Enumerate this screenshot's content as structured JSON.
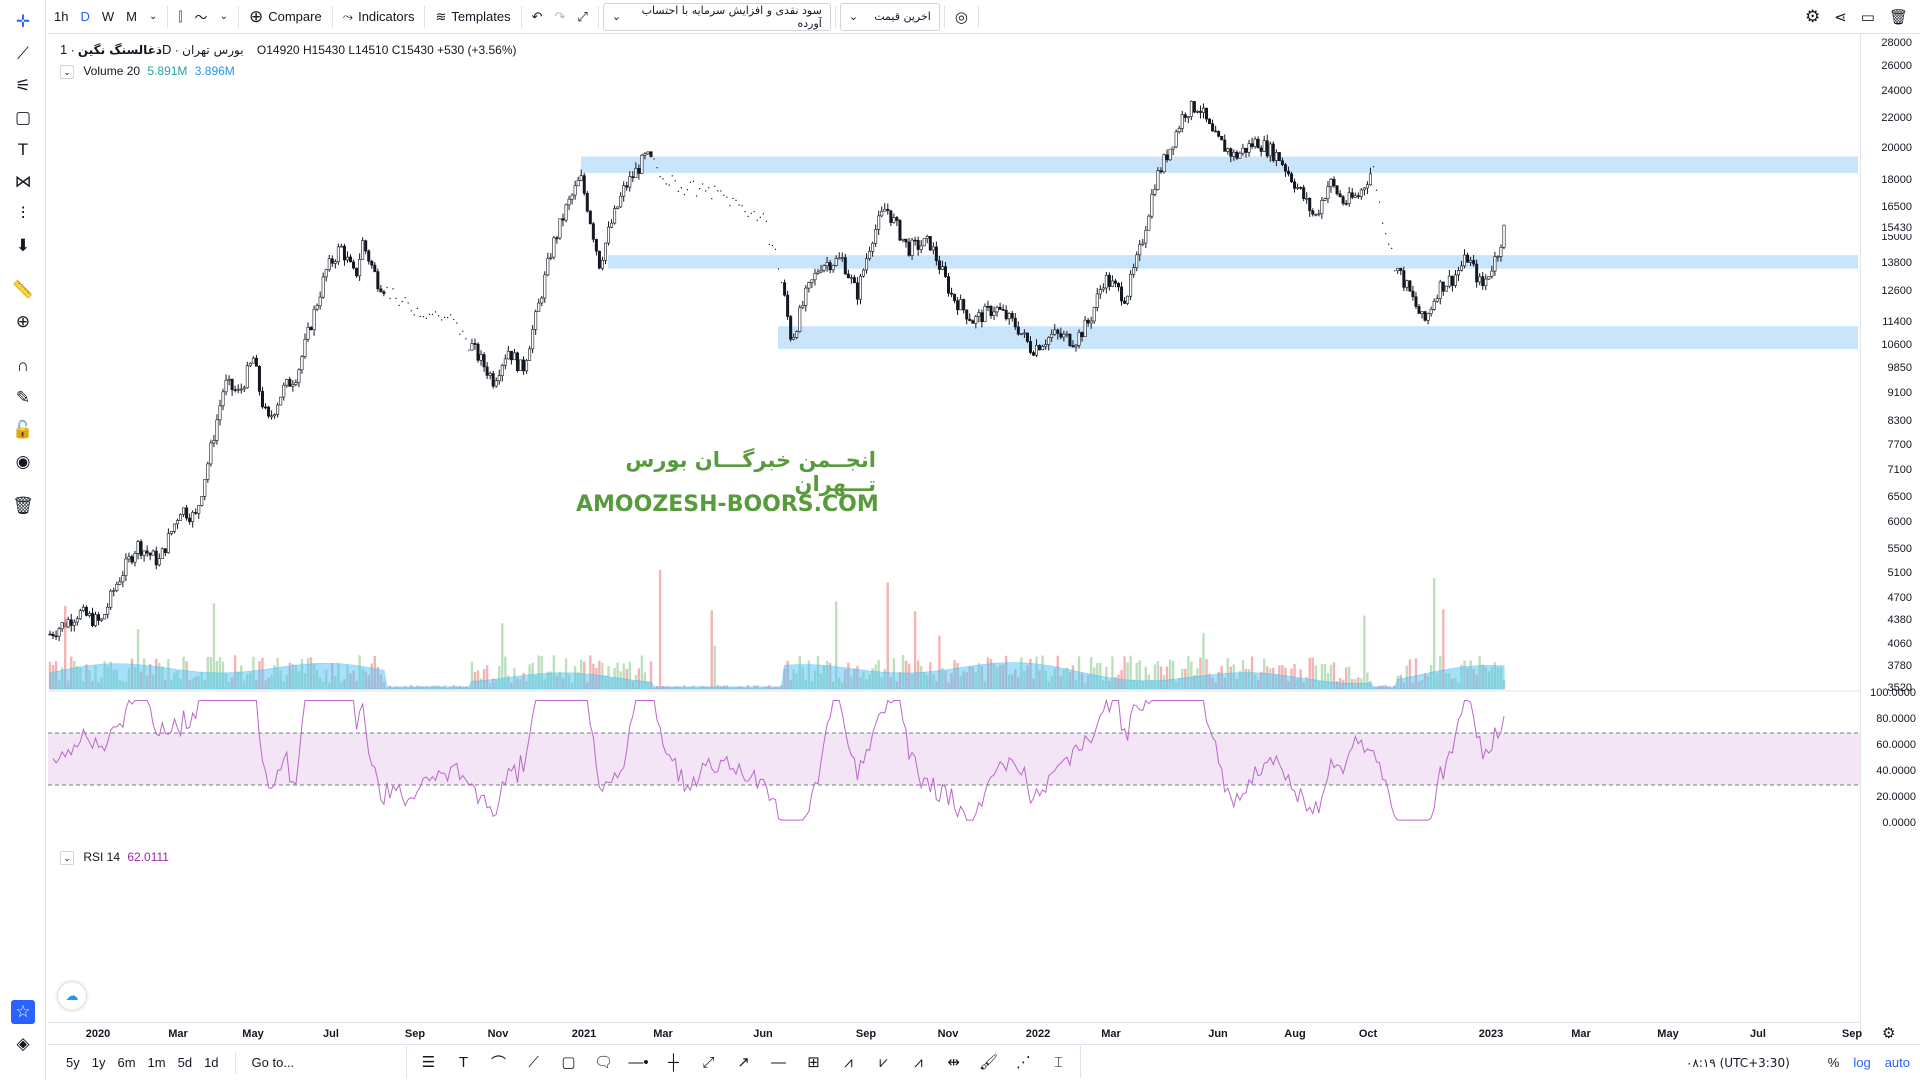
{
  "toolbar": {
    "intervals": [
      "1h",
      "D",
      "W",
      "M"
    ],
    "active_interval": "D",
    "compare_label": "Compare",
    "indicators_label": "Indicators",
    "templates_label": "Templates",
    "dropdown1_value": "سود نقدی و افزایش سرمایه با احتساب آورده",
    "dropdown2_value": "اخرین قیمت"
  },
  "legend": {
    "symbol": "ذغالسنگ نگین",
    "interval": "1D",
    "exchange": "بورس تهران",
    "open": "O14920",
    "high": "H15430",
    "low": "L14510",
    "close": "C15430",
    "change": "+530 (+3.56%)",
    "volume_title": "Volume 20",
    "volume_v1": "5.891M",
    "volume_v2": "3.896M",
    "rsi_title": "RSI 14",
    "rsi_value": "62.0111"
  },
  "watermark": {
    "line1": "انجــمن خبرگـــان بورس تـــهران",
    "line2": "AMOOZESH-BOORS.COM"
  },
  "bottom": {
    "ranges": [
      "5y",
      "1y",
      "6m",
      "1m",
      "5d",
      "1d"
    ],
    "goto_label": "Go to...",
    "timezone": "۰۸:۱۹ (UTC+3:30)",
    "percent": "%",
    "log": "log",
    "auto": "auto"
  },
  "colors": {
    "zone": "#bbdefb",
    "rsi_band": "#f3e5f5",
    "rsi_line": "#ba68c8",
    "vol_up": "#a5d6a7",
    "vol_down": "#ef9a9a",
    "vol_ma": "#4fc3f7",
    "accent": "#2962ff"
  },
  "chart_data": {
    "type": "candlestick",
    "title": "ذغالسنگ نگین",
    "price_axis_scale": "log",
    "price_axis_ticks": [
      28000,
      26000,
      24000,
      22000,
      20000,
      18000,
      16500,
      15000,
      13800,
      12600,
      11400,
      10600,
      9850,
      9100,
      8300,
      7700,
      7100,
      6500,
      6000,
      5500,
      5100,
      4700,
      4380,
      4060,
      3780,
      3520
    ],
    "last_price": 15430,
    "rsi_axis_ticks": [
      "100.0000",
      "80.0000",
      "60.0000",
      "40.0000",
      "20.0000",
      "0.0000"
    ],
    "rsi_band": [
      30,
      70
    ],
    "time_labels": [
      "2020",
      "Mar",
      "May",
      "Jul",
      "Sep",
      "Nov",
      "2021",
      "Mar",
      "Jun",
      "Sep",
      "Nov",
      "2022",
      "Mar",
      "Jun",
      "Aug",
      "Oct",
      "2023",
      "Mar",
      "May",
      "Jul",
      "Sep"
    ],
    "zones": [
      {
        "from": 18500,
        "to": 19500
      },
      {
        "from": 13600,
        "to": 14200
      },
      {
        "from": 10500,
        "to": 11300
      }
    ],
    "price_path": [
      {
        "x": 0,
        "y": 4200
      },
      {
        "x": 0.02,
        "y": 4500
      },
      {
        "x": 0.035,
        "y": 4350
      },
      {
        "x": 0.045,
        "y": 4900
      },
      {
        "x": 0.06,
        "y": 5600
      },
      {
        "x": 0.075,
        "y": 5300
      },
      {
        "x": 0.09,
        "y": 6300
      },
      {
        "x": 0.1,
        "y": 6100
      },
      {
        "x": 0.11,
        "y": 7500
      },
      {
        "x": 0.12,
        "y": 9400
      },
      {
        "x": 0.13,
        "y": 9100
      },
      {
        "x": 0.14,
        "y": 10200
      },
      {
        "x": 0.145,
        "y": 9000
      },
      {
        "x": 0.15,
        "y": 8300
      },
      {
        "x": 0.16,
        "y": 9200
      },
      {
        "x": 0.17,
        "y": 9700
      },
      {
        "x": 0.18,
        "y": 11500
      },
      {
        "x": 0.19,
        "y": 13500
      },
      {
        "x": 0.2,
        "y": 14600
      },
      {
        "x": 0.21,
        "y": 13200
      },
      {
        "x": 0.215,
        "y": 14800
      },
      {
        "x": 0.225,
        "y": 13100
      },
      {
        "x": 0.24,
        "y": 12200
      },
      {
        "x": 0.26,
        "y": 11800
      },
      {
        "x": 0.275,
        "y": 11600
      },
      {
        "x": 0.29,
        "y": 10600
      },
      {
        "x": 0.305,
        "y": 9500
      },
      {
        "x": 0.315,
        "y": 10500
      },
      {
        "x": 0.325,
        "y": 9800
      },
      {
        "x": 0.335,
        "y": 11800
      },
      {
        "x": 0.345,
        "y": 14500
      },
      {
        "x": 0.355,
        "y": 16500
      },
      {
        "x": 0.365,
        "y": 18200
      },
      {
        "x": 0.37,
        "y": 16500
      },
      {
        "x": 0.378,
        "y": 13800
      },
      {
        "x": 0.385,
        "y": 15500
      },
      {
        "x": 0.395,
        "y": 17600
      },
      {
        "x": 0.41,
        "y": 19500
      },
      {
        "x": 0.43,
        "y": 17800
      },
      {
        "x": 0.46,
        "y": 17300
      },
      {
        "x": 0.49,
        "y": 16000
      },
      {
        "x": 0.5,
        "y": 14100
      },
      {
        "x": 0.505,
        "y": 12400
      },
      {
        "x": 0.51,
        "y": 10800
      },
      {
        "x": 0.52,
        "y": 12500
      },
      {
        "x": 0.53,
        "y": 13800
      },
      {
        "x": 0.545,
        "y": 14000
      },
      {
        "x": 0.555,
        "y": 12500
      },
      {
        "x": 0.565,
        "y": 15000
      },
      {
        "x": 0.575,
        "y": 16600
      },
      {
        "x": 0.59,
        "y": 14500
      },
      {
        "x": 0.605,
        "y": 14800
      },
      {
        "x": 0.62,
        "y": 12500
      },
      {
        "x": 0.635,
        "y": 11500
      },
      {
        "x": 0.65,
        "y": 12000
      },
      {
        "x": 0.665,
        "y": 11300
      },
      {
        "x": 0.675,
        "y": 10500
      },
      {
        "x": 0.69,
        "y": 11000
      },
      {
        "x": 0.705,
        "y": 10800
      },
      {
        "x": 0.715,
        "y": 11500
      },
      {
        "x": 0.725,
        "y": 13200
      },
      {
        "x": 0.74,
        "y": 12400
      },
      {
        "x": 0.75,
        "y": 14500
      },
      {
        "x": 0.76,
        "y": 18000
      },
      {
        "x": 0.77,
        "y": 20000
      },
      {
        "x": 0.78,
        "y": 22500
      },
      {
        "x": 0.79,
        "y": 23000
      },
      {
        "x": 0.8,
        "y": 20800
      },
      {
        "x": 0.815,
        "y": 19500
      },
      {
        "x": 0.83,
        "y": 20500
      },
      {
        "x": 0.845,
        "y": 19500
      },
      {
        "x": 0.86,
        "y": 17400
      },
      {
        "x": 0.87,
        "y": 16000
      },
      {
        "x": 0.88,
        "y": 18000
      },
      {
        "x": 0.89,
        "y": 16800
      },
      {
        "x": 0.9,
        "y": 17200
      },
      {
        "x": 0.91,
        "y": 18800
      },
      {
        "x": 0.915,
        "y": 16500
      },
      {
        "x": 0.925,
        "y": 13800
      },
      {
        "x": 0.935,
        "y": 12600
      },
      {
        "x": 0.945,
        "y": 11400
      },
      {
        "x": 0.955,
        "y": 12800
      },
      {
        "x": 0.965,
        "y": 13200
      },
      {
        "x": 0.975,
        "y": 14100
      },
      {
        "x": 0.985,
        "y": 12800
      },
      {
        "x": 0.995,
        "y": 14200
      },
      {
        "x": 1.0,
        "y": 15430
      }
    ]
  }
}
